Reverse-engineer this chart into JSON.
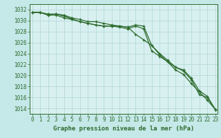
{
  "title": "Graphe pression niveau de la mer (hPa)",
  "background_color": "#c5e8e8",
  "plot_bg_color": "#d8f0f0",
  "grid_color": "#b0d4d4",
  "line_color": "#2d6b2d",
  "x_hours": [
    0,
    1,
    2,
    3,
    4,
    5,
    6,
    7,
    8,
    9,
    10,
    11,
    12,
    13,
    14,
    15,
    16,
    17,
    18,
    19,
    20,
    21,
    22,
    23
  ],
  "series": [
    [
      1031.5,
      1031.5,
      1031.0,
      1031.0,
      1030.5,
      1030.2,
      1029.8,
      1029.5,
      1029.2,
      1029.0,
      1029.0,
      1028.8,
      1028.5,
      1029.0,
      1028.5,
      1024.5,
      1023.5,
      1022.5,
      1021.5,
      1020.8,
      1019.2,
      1016.5,
      1016.0,
      1013.8
    ],
    [
      1031.5,
      1031.5,
      1031.0,
      1031.2,
      1030.8,
      1030.3,
      1029.8,
      1029.5,
      1029.2,
      1029.0,
      1029.0,
      1029.0,
      1028.8,
      1027.5,
      1026.5,
      1025.5,
      1023.8,
      1022.5,
      1021.0,
      1020.2,
      1018.5,
      1017.0,
      1015.5,
      1013.8
    ],
    [
      1031.5,
      1031.5,
      1031.2,
      1031.2,
      1031.0,
      1030.5,
      1030.2,
      1029.8,
      1029.8,
      1029.5,
      1029.2,
      1029.0,
      1028.8,
      1029.2,
      1029.0,
      1025.5,
      1024.0,
      1022.8,
      1021.5,
      1021.0,
      1019.5,
      1017.2,
      1016.2,
      1013.8
    ]
  ],
  "ylim": [
    1013,
    1033
  ],
  "yticks": [
    1014,
    1016,
    1018,
    1020,
    1022,
    1024,
    1026,
    1028,
    1030,
    1032
  ],
  "tick_fontsize": 5.5,
  "title_fontsize": 6.5
}
